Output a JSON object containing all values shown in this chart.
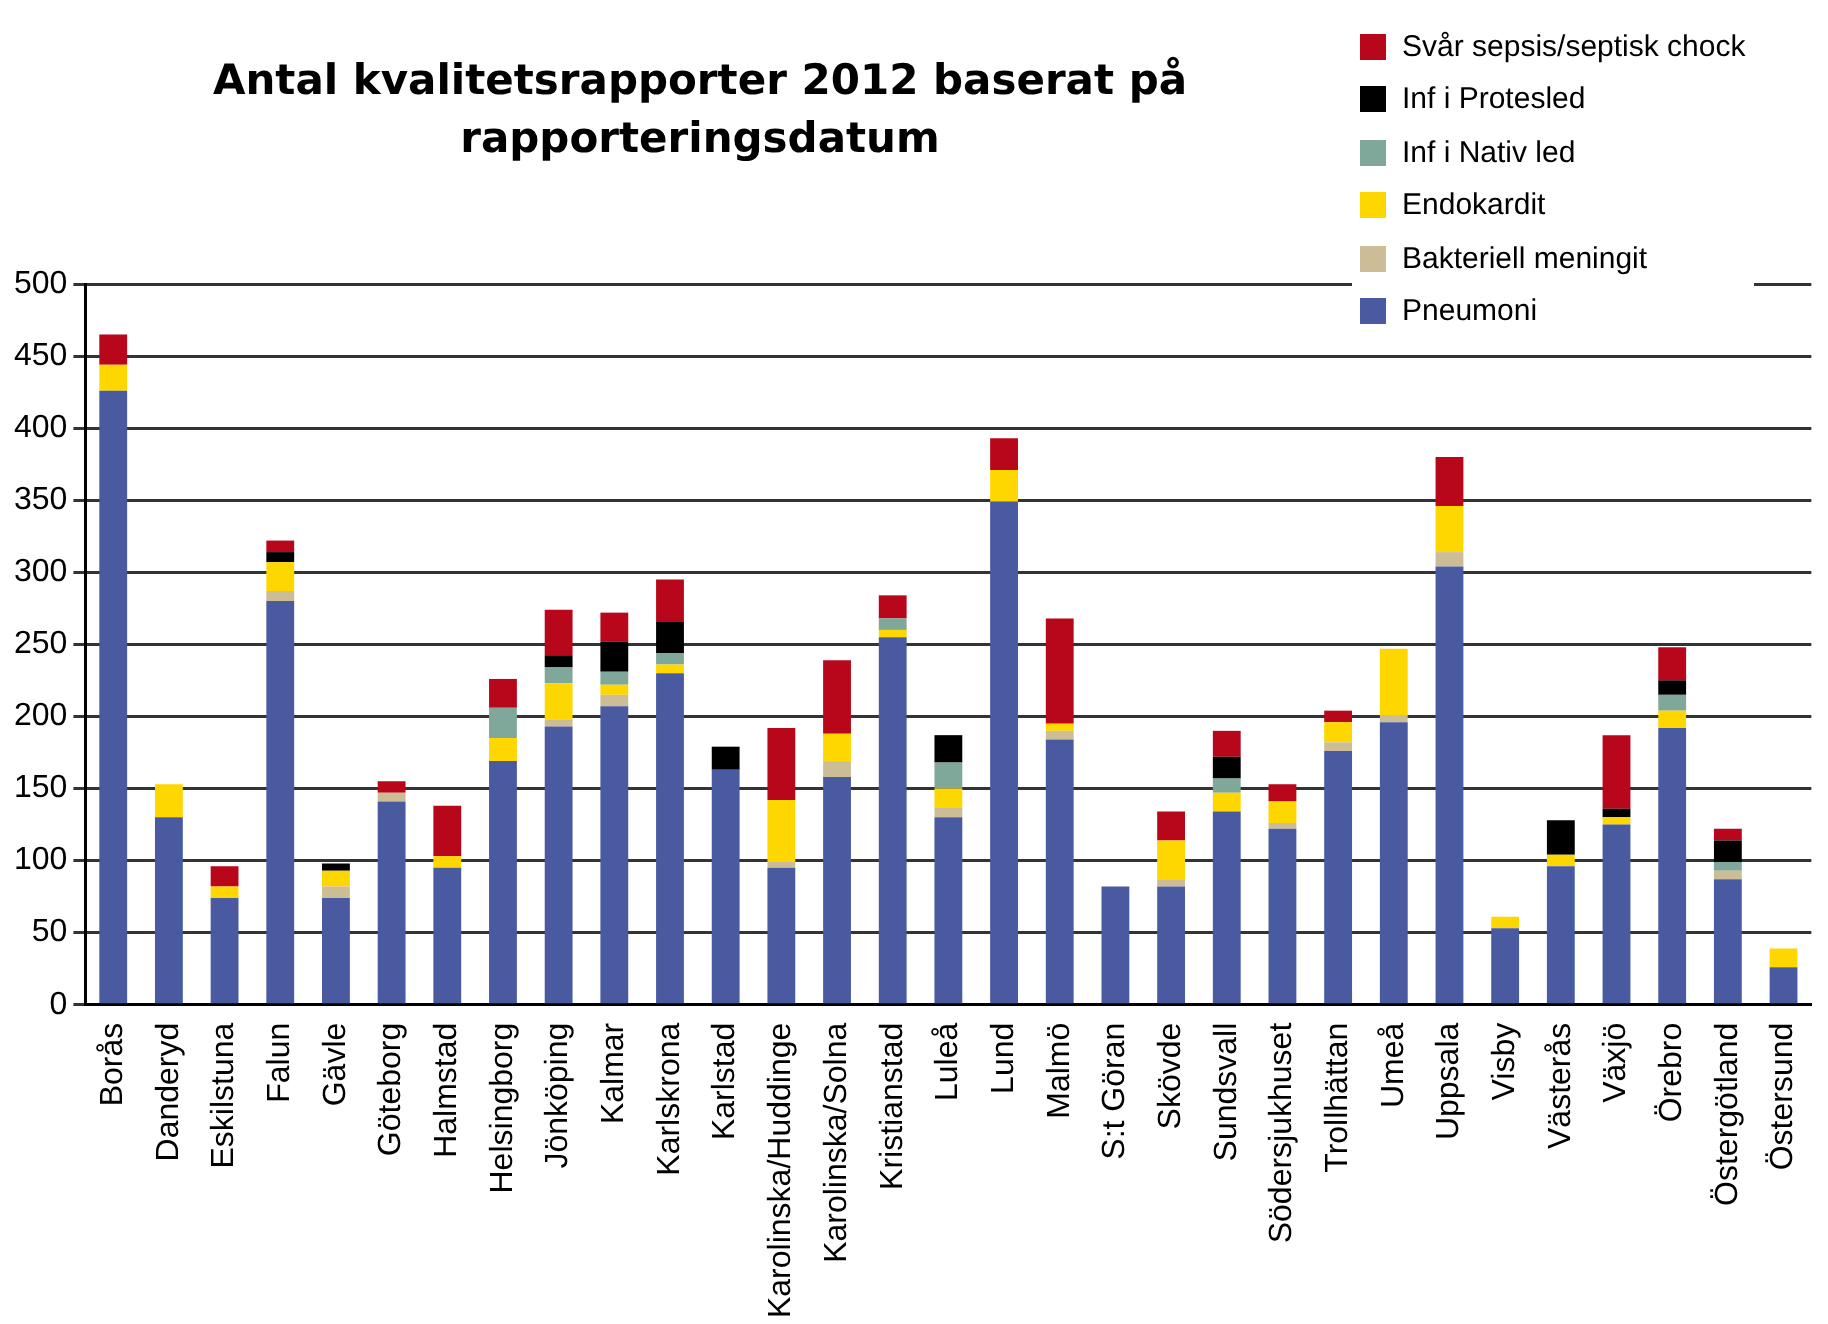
{
  "chart_data": {
    "type": "bar",
    "stacked": true,
    "title": "Antal kvalitetsrapporter 2012 baserat på rapporteringsdatum",
    "categories": [
      "Borås",
      "Danderyd",
      "Eskilstuna",
      "Falun",
      "Gävle",
      "Göteborg",
      "Halmstad",
      "Helsingborg",
      "Jönköping",
      "Kalmar",
      "Karlskrona",
      "Karlstad",
      "Karolinska/Huddinge",
      "Karolinska/Solna",
      "Kristianstad",
      "Luleå",
      "Lund",
      "Malmö",
      "S:t Göran",
      "Skövde",
      "Sundsvall",
      "Södersjukhuset",
      "Trollhättan",
      "Umeå",
      "Uppsala",
      "Visby",
      "Västerås",
      "Växjö",
      "Örebro",
      "Östergötland",
      "Östersund"
    ],
    "series": [
      {
        "name": "Pneumoni",
        "color": "#4a5aa0",
        "values": [
          426,
          130,
          74,
          280,
          74,
          141,
          95,
          169,
          193,
          207,
          230,
          163,
          95,
          158,
          255,
          130,
          349,
          184,
          82,
          82,
          134,
          122,
          176,
          196,
          304,
          53,
          96,
          125,
          192,
          87,
          26
        ]
      },
      {
        "name": "Bakteriell meningit",
        "color": "#cdbd96",
        "values": [
          0,
          0,
          0,
          7,
          8,
          6,
          0,
          0,
          5,
          8,
          0,
          0,
          4,
          11,
          0,
          7,
          0,
          6,
          0,
          5,
          0,
          4,
          6,
          5,
          10,
          0,
          0,
          0,
          0,
          6,
          0
        ]
      },
      {
        "name": "Endokardit",
        "color": "#ffd700",
        "values": [
          18,
          23,
          8,
          20,
          11,
          0,
          8,
          16,
          25,
          7,
          6,
          0,
          43,
          19,
          5,
          13,
          22,
          5,
          0,
          27,
          13,
          15,
          14,
          46,
          32,
          8,
          8,
          5,
          12,
          0,
          13
        ]
      },
      {
        "name": "Inf i Nativ led",
        "color": "#80a89a",
        "values": [
          0,
          0,
          0,
          0,
          0,
          0,
          0,
          21,
          11,
          9,
          8,
          0,
          0,
          0,
          8,
          18,
          0,
          0,
          0,
          0,
          10,
          0,
          0,
          0,
          0,
          0,
          0,
          0,
          11,
          6,
          0
        ]
      },
      {
        "name": "Inf i Protesled",
        "color": "#000000",
        "values": [
          0,
          0,
          0,
          7,
          5,
          0,
          0,
          0,
          8,
          21,
          22,
          16,
          0,
          0,
          0,
          19,
          0,
          0,
          0,
          0,
          15,
          0,
          0,
          0,
          0,
          0,
          24,
          6,
          10,
          15,
          0
        ]
      },
      {
        "name": "Svår sepsis/septisk chock",
        "color": "#b8071b",
        "values": [
          21,
          0,
          14,
          8,
          0,
          8,
          35,
          20,
          32,
          20,
          29,
          0,
          50,
          51,
          16,
          0,
          22,
          73,
          0,
          20,
          18,
          12,
          8,
          0,
          34,
          0,
          0,
          51,
          23,
          8,
          0
        ]
      }
    ],
    "ylim": [
      0,
      500
    ],
    "yticks": [
      0,
      50,
      100,
      150,
      200,
      250,
      300,
      350,
      400,
      450,
      500
    ],
    "grid": "y",
    "legend": "top right"
  }
}
